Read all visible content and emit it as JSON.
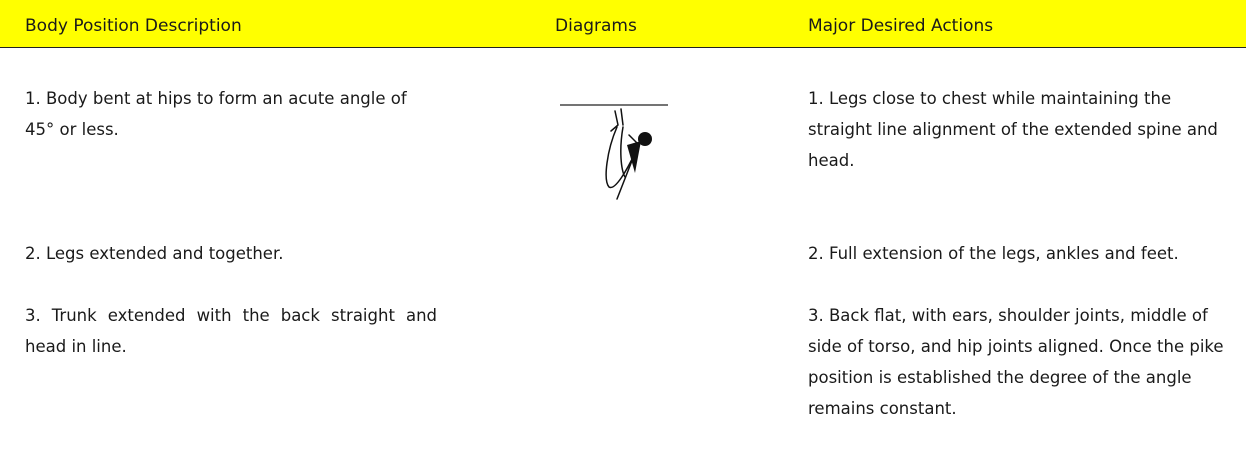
{
  "table": {
    "header": [
      "Body Position Description",
      "Diagrams",
      "Major Desired Actions"
    ],
    "rows": [
      [
        "1. Body bent at hips to form an acute angle of 45° or less.",
        "1. Legs close to chest while maintaining the straight line alignment of the extended spine and head."
      ],
      [
        "2. Legs extended and together.",
        "2. Full extension of the legs, ankles and feet."
      ],
      [
        "3. Trunk extended with the back straight and head in line.",
        "3. Back flat, with ears, shoulder joints, middle of side of torso, and hip joints aligned. Once the pike position is established the degree of the angle remains constant."
      ]
    ]
  }
}
